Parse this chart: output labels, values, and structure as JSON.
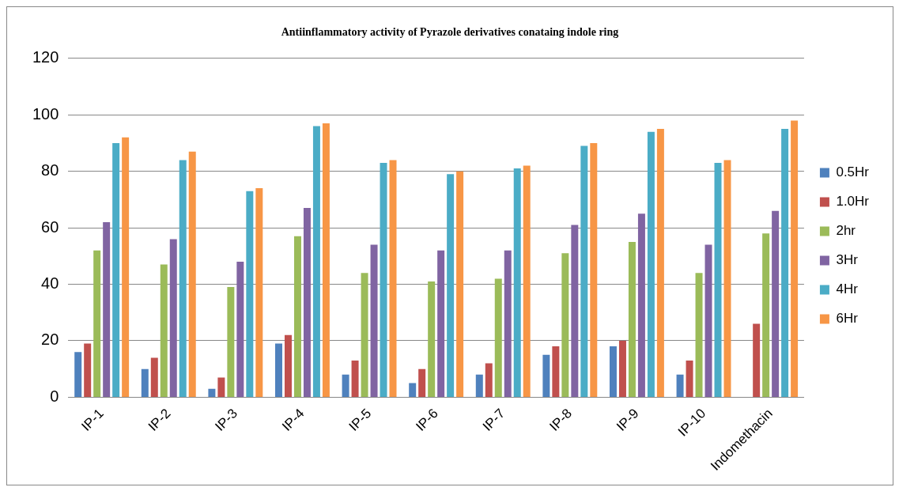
{
  "chart_data": {
    "type": "bar",
    "title": "Antiinflammatory activity of Pyrazole derivatives conataing indole ring",
    "categories": [
      "IP-1",
      "IP-2",
      "IP-3",
      "IP-4",
      "IP-5",
      "IP-6",
      "IP-7",
      "IP-8",
      "IP-9",
      "IP-10",
      "Indomethacin"
    ],
    "series": [
      {
        "name": "0.5Hr",
        "color": "#4f81bd",
        "values": [
          16,
          10,
          3,
          19,
          8,
          5,
          8,
          15,
          18,
          8,
          null
        ]
      },
      {
        "name": "1.0Hr",
        "color": "#c0504d",
        "values": [
          19,
          14,
          7,
          22,
          13,
          10,
          12,
          18,
          20,
          13,
          26
        ]
      },
      {
        "name": "2hr",
        "color": "#9bbb59",
        "values": [
          52,
          47,
          39,
          57,
          44,
          41,
          42,
          51,
          55,
          44,
          58
        ]
      },
      {
        "name": "3Hr",
        "color": "#8064a2",
        "values": [
          62,
          56,
          48,
          67,
          54,
          52,
          52,
          61,
          65,
          54,
          66
        ]
      },
      {
        "name": "4Hr",
        "color": "#4bacc6",
        "values": [
          90,
          84,
          73,
          96,
          83,
          79,
          81,
          89,
          94,
          83,
          95
        ]
      },
      {
        "name": "6Hr",
        "color": "#f79646",
        "values": [
          92,
          87,
          74,
          97,
          84,
          80,
          82,
          90,
          95,
          84,
          98
        ]
      }
    ],
    "ylim": [
      0,
      120
    ],
    "yticks": [
      0,
      20,
      40,
      60,
      80,
      100,
      120
    ],
    "grid": "y",
    "legend": "right"
  }
}
